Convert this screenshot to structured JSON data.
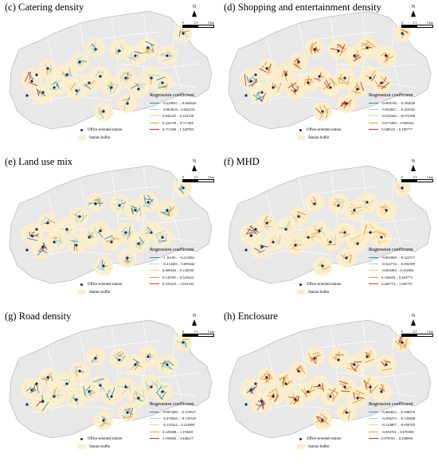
{
  "panels": [
    {
      "title": "(c) Catering density",
      "legend_title": "Regression coefficient",
      "classes": [
        "-0.228947 – -0.063620",
        "-0.063619 – 0.042224",
        "0.042225 – 0.222138",
        "0.222139 – 0.711385",
        "0.711386 – 1.548789"
      ],
      "colors": [
        "#2a8fb8",
        "#9fd4dc",
        "#f2cf8a",
        "#e8952e",
        "#d6302a"
      ]
    },
    {
      "title": "(d) Shopping and entertainment density",
      "legend_title": "Regression coefficient",
      "classes": [
        "-0.960130 – -0.582028",
        "-0.582027 – -0.252341",
        "-0.252340 – -0.073390",
        "-0.073389 – 0.048324",
        "0.048325 – 0.195777"
      ],
      "colors": [
        "#2a8fb8",
        "#9fd4dc",
        "#f2cf8a",
        "#e8952e",
        "#d6302a"
      ]
    },
    {
      "title": "(e) Land use mix",
      "legend_title": "Regression coefficient",
      "classes": [
        "-1.16193 – -0.214384",
        "-0.214383 – 0.009442",
        "0.009443 – 0.143590",
        "0.143591 – 0.525422",
        "0.525423 – 1.652182"
      ],
      "colors": [
        "#2a8fb8",
        "#9fd4dc",
        "#f2cf8a",
        "#e8952e",
        "#d6302a"
      ]
    },
    {
      "title": "(f) MHD",
      "legend_title": "Regression coefficient",
      "classes": [
        "-0.865908 – -0.322717",
        "-0.322716 – -0.092395",
        "-0.092394 – 0.102692",
        "0.102693 – 0.402773",
        "0.402774 – 1.065791"
      ],
      "colors": [
        "#2a8fb8",
        "#9fd4dc",
        "#f2cf8a",
        "#e8952e",
        "#d6302a"
      ]
    },
    {
      "title": "(g) Road density",
      "legend_title": "Regression coefficient",
      "classes": [
        "-0.987480 – -0.476927",
        "-0.476926 – -0.135325",
        "-0.135324 – 0.224999",
        "0.225000 – 1.193601",
        "1.193602 – 3.446217"
      ],
      "colors": [
        "#2a8fb8",
        "#9fd4dc",
        "#f2cf8a",
        "#e8952e",
        "#d6302a"
      ]
    },
    {
      "title": "(h) Enclosure",
      "legend_title": "Regression coefficient",
      "classes": [
        "-0.482852 – -0.298276",
        "-0.298275 – -0.145808",
        "-0.145807 – -0.050702",
        "-0.050701 – 0.076500",
        "0.076501 – 0.228094"
      ],
      "colors": [
        "#2a8fb8",
        "#9fd4dc",
        "#f2cf8a",
        "#e8952e",
        "#d6302a"
      ]
    }
  ],
  "common": {
    "north_label": "N",
    "scale_labels": [
      "0",
      "2.5",
      "5 km"
    ],
    "station_label": "Office-oriented station",
    "buffer_label": "Station buffer",
    "map_fill": "#e8e8e8",
    "buffer_fill": "#fbeecd"
  }
}
